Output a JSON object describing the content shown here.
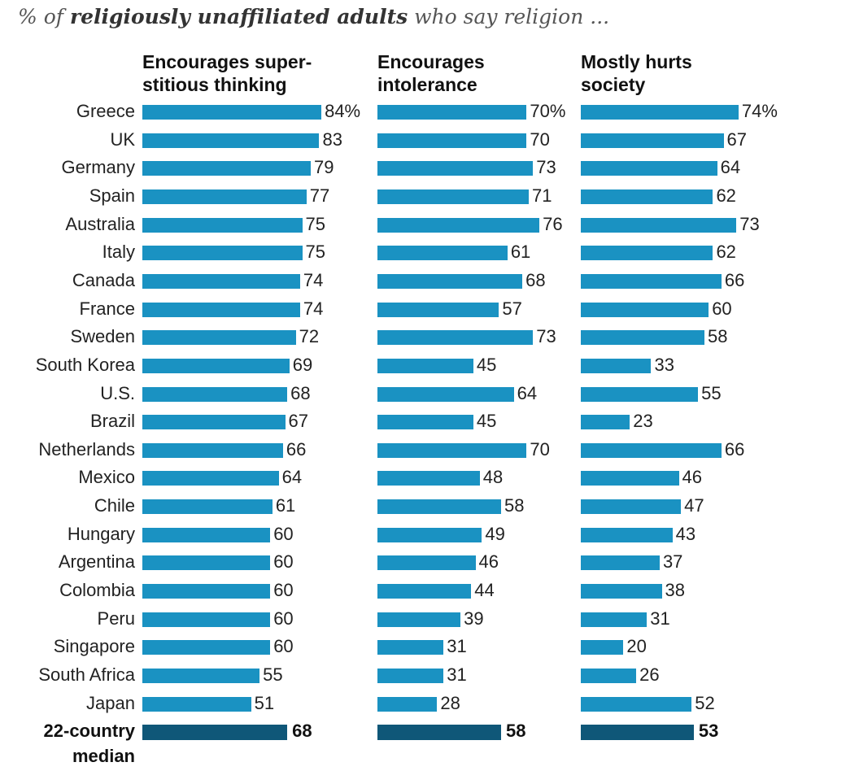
{
  "subtitle": {
    "prefix": "% of ",
    "emphasis": "religiously unaffiliated adults",
    "suffix": " who say religion ..."
  },
  "colors": {
    "bar": "#1a92c2",
    "median_bar": "#0f5778"
  },
  "chart_data": {
    "type": "bar",
    "orientation": "horizontal",
    "title": "% of religiously unaffiliated adults who say religion ...",
    "value_suffix_first_row": "%",
    "categories": [
      "Greece",
      "UK",
      "Germany",
      "Spain",
      "Australia",
      "Italy",
      "Canada",
      "France",
      "Sweden",
      "South Korea",
      "U.S.",
      "Brazil",
      "Netherlands",
      "Mexico",
      "Chile",
      "Hungary",
      "Argentina",
      "Colombia",
      "Peru",
      "Singapore",
      "South Africa",
      "Japan"
    ],
    "median_label": [
      "22-country",
      "median"
    ],
    "series": [
      {
        "name": "Encourages super-stitious thinking",
        "header_lines": [
          "Encourages super-",
          "stitious thinking"
        ],
        "values": [
          84,
          83,
          79,
          77,
          75,
          75,
          74,
          74,
          72,
          69,
          68,
          67,
          66,
          64,
          61,
          60,
          60,
          60,
          60,
          60,
          55,
          51
        ],
        "median": 68
      },
      {
        "name": "Encourages intolerance",
        "header_lines": [
          "Encourages",
          "intolerance"
        ],
        "values": [
          70,
          70,
          73,
          71,
          76,
          61,
          68,
          57,
          73,
          45,
          64,
          45,
          70,
          48,
          58,
          49,
          46,
          44,
          39,
          31,
          31,
          28
        ],
        "median": 58
      },
      {
        "name": "Mostly hurts society",
        "header_lines": [
          "Mostly hurts",
          "society"
        ],
        "values": [
          74,
          67,
          64,
          62,
          73,
          62,
          66,
          60,
          58,
          33,
          55,
          23,
          66,
          46,
          47,
          43,
          37,
          38,
          31,
          20,
          26,
          52
        ],
        "median": 53
      }
    ]
  }
}
